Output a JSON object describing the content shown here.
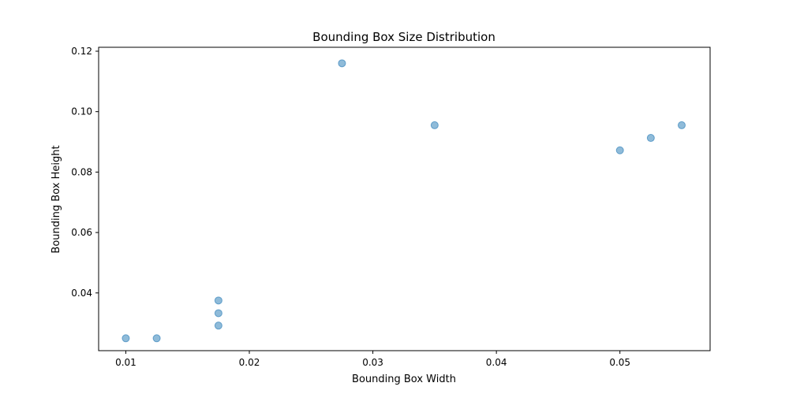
{
  "chart_data": {
    "type": "scatter",
    "title": "Bounding Box Size Distribution",
    "xlabel": "Bounding Box Width",
    "ylabel": "Bounding Box Height",
    "xlim": [
      0.0078,
      0.0573
    ],
    "ylim": [
      0.0209,
      0.1213
    ],
    "xticks": [
      0.01,
      0.02,
      0.03,
      0.04,
      0.05
    ],
    "xtick_labels": [
      "0.01",
      "0.02",
      "0.03",
      "0.04",
      "0.05"
    ],
    "yticks": [
      0.04,
      0.06,
      0.08,
      0.1,
      0.12
    ],
    "ytick_labels": [
      "0.04",
      "0.06",
      "0.08",
      "0.10",
      "0.12"
    ],
    "grid": false,
    "marker_color": "#1f77b4",
    "marker_alpha": 0.5,
    "points": [
      {
        "x": 0.01,
        "y": 0.025
      },
      {
        "x": 0.0125,
        "y": 0.025
      },
      {
        "x": 0.0175,
        "y": 0.0292
      },
      {
        "x": 0.0175,
        "y": 0.0333
      },
      {
        "x": 0.0175,
        "y": 0.0375
      },
      {
        "x": 0.0275,
        "y": 0.116
      },
      {
        "x": 0.035,
        "y": 0.0955
      },
      {
        "x": 0.05,
        "y": 0.0872
      },
      {
        "x": 0.0525,
        "y": 0.0913
      },
      {
        "x": 0.055,
        "y": 0.0955
      }
    ]
  }
}
